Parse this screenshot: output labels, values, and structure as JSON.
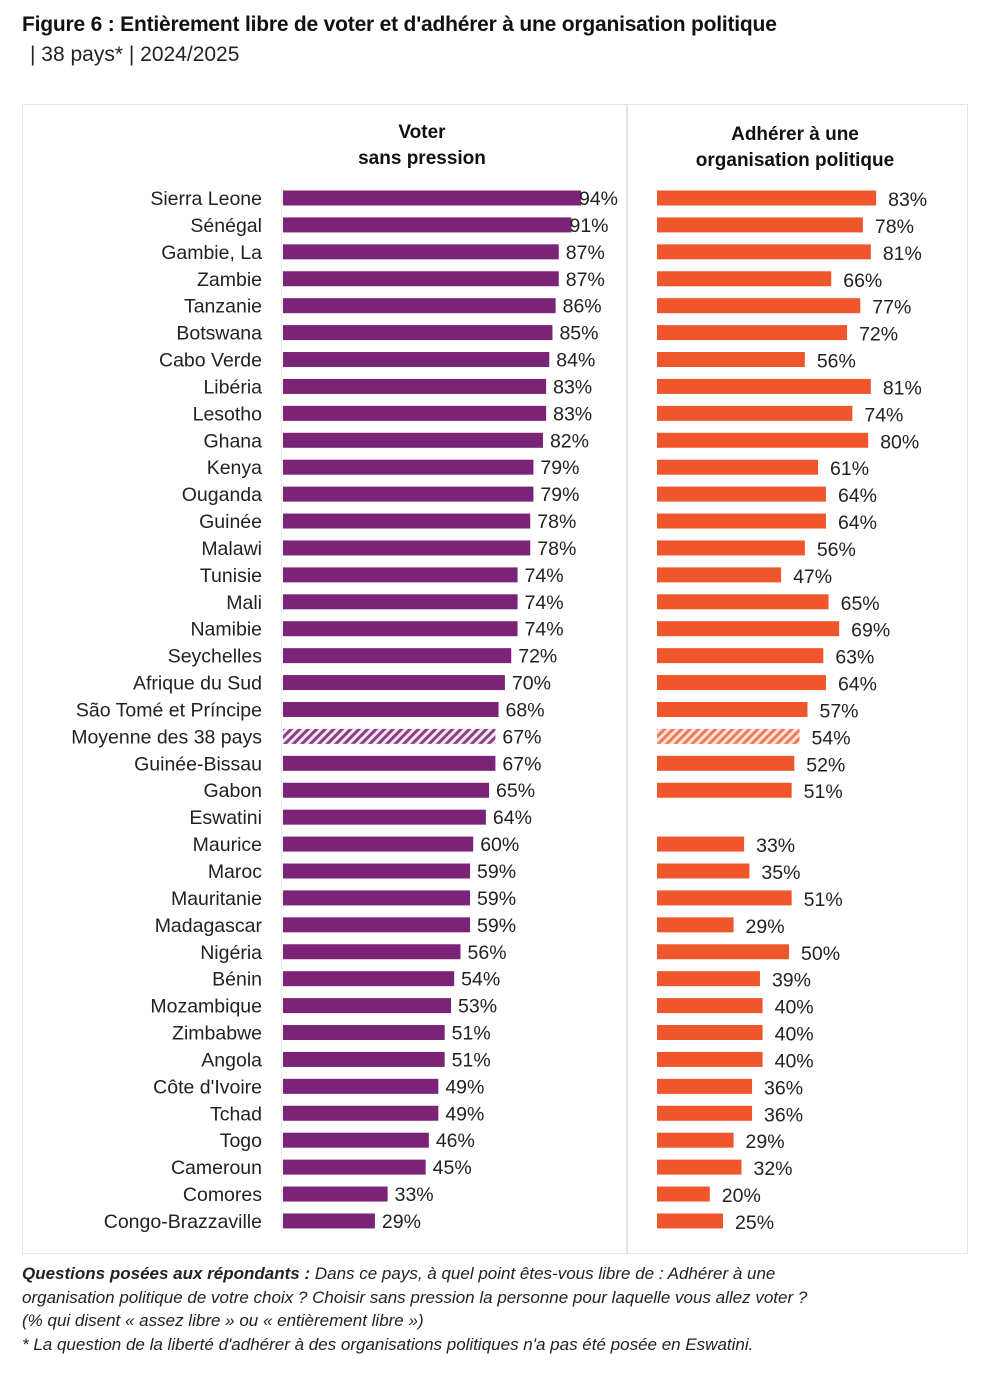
{
  "figure": {
    "title": "Figure 6 : Entièrement libre de voter et d'adhérer à une organisation politique",
    "subtitle": "| 38 pays* | 2024/2025"
  },
  "chart_data": {
    "type": "bar",
    "orientation": "horizontal",
    "title": "Figure 6 : Entièrement libre de voter et d'adhérer à une organisation politique",
    "subtitle": "| 38 pays* | 2024/2025",
    "unit": "%",
    "xlim": [
      0,
      100
    ],
    "grid": false,
    "legend": "none",
    "categories": [
      "Sierra Leone",
      "Sénégal",
      "Gambie, La",
      "Zambie",
      "Tanzanie",
      "Botswana",
      "Cabo Verde",
      "Libéria",
      "Lesotho",
      "Ghana",
      "Kenya",
      "Ouganda",
      "Guinée",
      "Malawi",
      "Tunisie",
      "Mali",
      "Namibie",
      "Seychelles",
      "Afrique du Sud",
      "São Tomé et Príncipe",
      "Moyenne des 38 pays",
      "Guinée-Bissau",
      "Gabon",
      "Eswatini",
      "Maurice",
      "Maroc",
      "Mauritanie",
      "Madagascar",
      "Nigéria",
      "Bénin",
      "Mozambique",
      "Zimbabwe",
      "Angola",
      "Côte d'Ivoire",
      "Tchad",
      "Togo",
      "Cameroun",
      "Comores",
      "Congo-Brazzaville"
    ],
    "average_category": "Moyenne des 38 pays",
    "series": [
      {
        "name": "Voter sans pression",
        "header_lines": [
          "Voter",
          "sans pression"
        ],
        "color": "#7b2477",
        "average_color": "#9c5a98",
        "values": [
          94,
          91,
          87,
          87,
          86,
          85,
          84,
          83,
          83,
          82,
          79,
          79,
          78,
          78,
          74,
          74,
          74,
          72,
          70,
          68,
          67,
          67,
          65,
          64,
          60,
          59,
          59,
          59,
          56,
          54,
          53,
          51,
          51,
          49,
          49,
          46,
          45,
          33,
          29
        ]
      },
      {
        "name": "Adhérer à une organisation politique",
        "header_lines": [
          "Adhérer à une",
          "organisation politique"
        ],
        "color": "#f0562b",
        "average_color": "#f08a68",
        "values": [
          83,
          78,
          81,
          66,
          77,
          72,
          56,
          81,
          74,
          80,
          61,
          64,
          64,
          56,
          47,
          65,
          69,
          63,
          64,
          57,
          54,
          52,
          51,
          null,
          33,
          35,
          51,
          29,
          50,
          39,
          40,
          40,
          40,
          36,
          36,
          29,
          32,
          20,
          25
        ]
      }
    ]
  },
  "footer": {
    "question_label": "Questions posées aux répondants :",
    "question_line1": " Dans ce pays, à quel point êtes-vous libre de : Adhérer à une",
    "question_line2": "organisation politique de votre choix ? Choisir sans pression la personne pour laquelle vous allez voter ?",
    "question_line3": "(% qui disent « assez libre » ou « entièrement libre »)",
    "note": "* La question de la liberté d'adhérer à des organisations politiques n'a pas été posée en Eswatini."
  }
}
